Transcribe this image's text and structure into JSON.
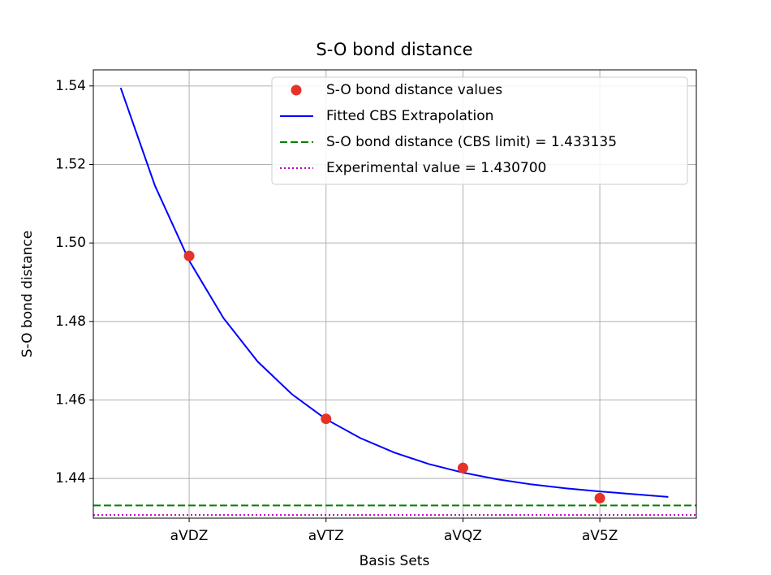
{
  "chart_data": {
    "type": "line",
    "title": "S-O bond distance",
    "x_label": "Basis Sets",
    "y_label": "S-O bond distance",
    "xlim": [
      1.3,
      5.705
    ],
    "xticks": [
      {
        "value": 2,
        "label": "aVDZ"
      },
      {
        "value": 3,
        "label": "aVTZ"
      },
      {
        "value": 4,
        "label": "aVQZ"
      },
      {
        "value": 5,
        "label": "aV5Z"
      }
    ],
    "ylim": [
      1.4299,
      1.5441
    ],
    "yticks": [
      1.44,
      1.46,
      1.48,
      {
        "value": 1.5,
        "label": "1.50"
      },
      1.52,
      1.54
    ],
    "grid": true,
    "legend": "upper right",
    "series": [
      {
        "name": "S-O bond distance values",
        "color": "#e6332a",
        "kind": "scatter",
        "marker": "o",
        "x": [
          2,
          3,
          4,
          5
        ],
        "values": [
          1.4967,
          1.4552,
          1.4427,
          1.435
        ]
      },
      {
        "name": "Fitted CBS Extrapolation",
        "color": "#0000ff",
        "kind": "line",
        "linestyle": "solid",
        "x": [
          1.5,
          1.75,
          2,
          2.25,
          2.5,
          2.75,
          3,
          3.25,
          3.5,
          3.75,
          4,
          4.25,
          4.5,
          4.75,
          5,
          5.25,
          5.5
        ],
        "values": [
          1.5395,
          1.5146,
          1.4955,
          1.4809,
          1.4698,
          1.4615,
          1.4551,
          1.4503,
          1.4466,
          1.4437,
          1.4415,
          1.4398,
          1.4385,
          1.4375,
          1.4367,
          1.436,
          1.4353
        ]
      },
      {
        "name": "S-O bond distance (CBS limit) = 1.433135",
        "color": "#008000",
        "kind": "hline",
        "linestyle": "dashed",
        "values": [
          1.433135
        ]
      },
      {
        "name": "Experimental value = 1.430700",
        "color": "#bf00bf",
        "kind": "hline",
        "linestyle": "dotted",
        "values": [
          1.4307
        ]
      }
    ]
  }
}
